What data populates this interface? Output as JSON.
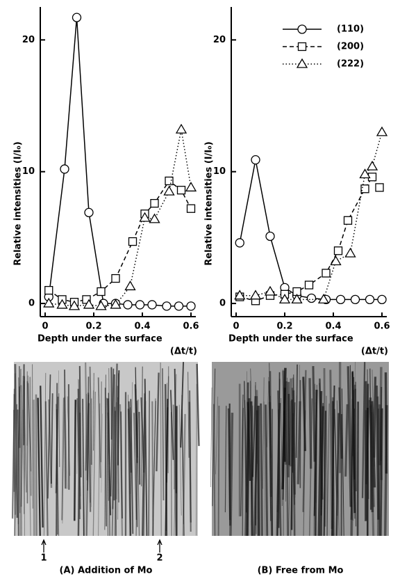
{
  "chart_data": [
    {
      "type": "line",
      "y_label": "Relative intensities (I/I₀)",
      "x_label": "Depth under the surface",
      "x_unit": "(Δt/t)",
      "xlim": [
        -0.02,
        0.62
      ],
      "ylim": [
        -1,
        22.5
      ],
      "xticks": [
        0,
        0.2,
        0.4,
        0.6
      ],
      "yticks": [
        0,
        10,
        20
      ],
      "legend": false,
      "series": [
        {
          "marker": "circle",
          "dash": "solid",
          "color": "#000000",
          "x": [
            0.015,
            0.08,
            0.13,
            0.18,
            0.24,
            0.29,
            0.34,
            0.39,
            0.44,
            0.5,
            0.55,
            0.6
          ],
          "values": [
            0.5,
            10.2,
            21.7,
            6.9,
            0,
            0,
            -0.1,
            -0.1,
            -0.1,
            -0.2,
            -0.2,
            -0.2
          ]
        },
        {
          "marker": "square",
          "dash": "dashed",
          "color": "#000000",
          "x": [
            0.015,
            0.07,
            0.12,
            0.17,
            0.23,
            0.29,
            0.36,
            0.41,
            0.45,
            0.51,
            0.56,
            0.6
          ],
          "values": [
            1.0,
            0.3,
            0.1,
            0.3,
            0.9,
            1.9,
            4.7,
            6.8,
            7.6,
            9.3,
            8.6,
            7.2
          ]
        },
        {
          "marker": "triangle",
          "dash": "dotted",
          "color": "#000000",
          "x": [
            0.015,
            0.07,
            0.12,
            0.18,
            0.23,
            0.29,
            0.35,
            0.41,
            0.45,
            0.51,
            0.56,
            0.6
          ],
          "values": [
            0,
            -0.1,
            -0.2,
            -0.1,
            -0.2,
            -0.1,
            1.3,
            6.5,
            6.4,
            8.5,
            13.2,
            8.8
          ]
        }
      ]
    },
    {
      "type": "line",
      "y_label": "Relative intensities (I/I₀)",
      "x_label": "Depth under the surface",
      "x_unit": "(Δt/t)",
      "xlim": [
        -0.02,
        0.62
      ],
      "ylim": [
        -1,
        22.5
      ],
      "xticks": [
        0,
        0.2,
        0.4,
        0.6
      ],
      "yticks": [
        0,
        10,
        20
      ],
      "legend": "upper right",
      "series": [
        {
          "name": "(110)",
          "marker": "circle",
          "dash": "solid",
          "color": "#000000",
          "x": [
            0.015,
            0.08,
            0.14,
            0.2,
            0.25,
            0.31,
            0.37,
            0.43,
            0.49,
            0.55,
            0.6
          ],
          "values": [
            4.6,
            10.9,
            5.1,
            1.2,
            0.6,
            0.4,
            0.3,
            0.3,
            0.3,
            0.3,
            0.3
          ]
        },
        {
          "name": "(200)",
          "marker": "square",
          "dash": "dashed",
          "color": "#000000",
          "x": [
            0.015,
            0.08,
            0.14,
            0.2,
            0.25,
            0.3,
            0.37,
            0.42,
            0.46,
            0.53,
            0.56,
            0.59
          ],
          "values": [
            0.5,
            0.2,
            0.6,
            0.7,
            0.9,
            1.4,
            2.3,
            4.0,
            6.3,
            8.7,
            9.6,
            8.8
          ]
        },
        {
          "name": "(222)",
          "marker": "triangle",
          "dash": "dotted",
          "color": "#000000",
          "x": [
            0.015,
            0.08,
            0.14,
            0.2,
            0.25,
            0.36,
            0.41,
            0.47,
            0.53,
            0.56,
            0.6
          ],
          "values": [
            0.6,
            0.6,
            0.9,
            0.3,
            0.3,
            0.3,
            3.2,
            3.8,
            9.8,
            10.4,
            13.0
          ]
        }
      ]
    }
  ],
  "micrographs": [
    {
      "caption": "(A) Addition of Mo",
      "markers": [
        "1",
        "2"
      ]
    },
    {
      "caption": "(B) Free from Mo"
    }
  ]
}
